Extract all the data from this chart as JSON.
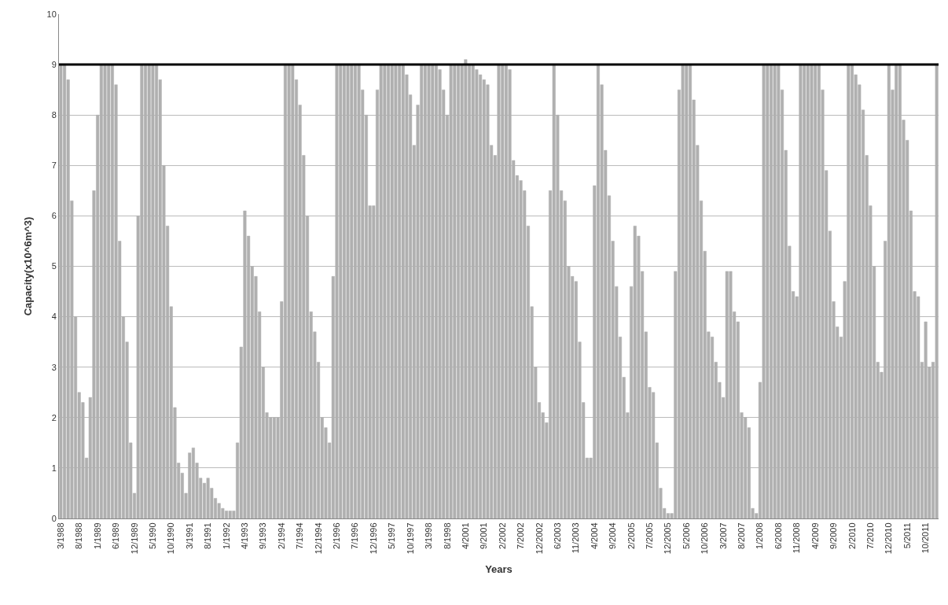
{
  "chart_data": {
    "type": "bar",
    "xlabel": "Years",
    "ylabel": "Capacity(x10^6m^3)",
    "categories": [
      "3/1988",
      null,
      null,
      null,
      null,
      "8/1988",
      null,
      null,
      null,
      null,
      "1/1989",
      null,
      null,
      null,
      null,
      "6/1989",
      null,
      null,
      null,
      null,
      "12/1989",
      null,
      null,
      null,
      null,
      "5/1990",
      null,
      null,
      null,
      null,
      "10/1990",
      null,
      null,
      null,
      null,
      "3/1991",
      null,
      null,
      null,
      null,
      "8/1991",
      null,
      null,
      null,
      null,
      "1/1992",
      null,
      null,
      null,
      null,
      "4/1993",
      null,
      null,
      null,
      null,
      "9/1993",
      null,
      null,
      null,
      null,
      "2/1994",
      null,
      null,
      null,
      null,
      "7/1994",
      null,
      null,
      null,
      null,
      "12/1994",
      null,
      null,
      null,
      null,
      "2/1996",
      null,
      null,
      null,
      null,
      "7/1996",
      null,
      null,
      null,
      null,
      "12/1996",
      null,
      null,
      null,
      null,
      "5/1997",
      null,
      null,
      null,
      null,
      "10/1997",
      null,
      null,
      null,
      null,
      "3/1998",
      null,
      null,
      null,
      null,
      "8/1998",
      null,
      null,
      null,
      null,
      "4/2001",
      null,
      null,
      null,
      null,
      "9/2001",
      null,
      null,
      null,
      null,
      "2/2002",
      null,
      null,
      null,
      null,
      "7/2002",
      null,
      null,
      null,
      null,
      "12/2002",
      null,
      null,
      null,
      null,
      "6/2003",
      null,
      null,
      null,
      null,
      "11/2003",
      null,
      null,
      null,
      null,
      "4/2004",
      null,
      null,
      null,
      null,
      "9/2004",
      null,
      null,
      null,
      null,
      "2/2005",
      null,
      null,
      null,
      null,
      "7/2005",
      null,
      null,
      null,
      null,
      "12/2005",
      null,
      null,
      null,
      null,
      "5/2006",
      null,
      null,
      null,
      null,
      "10/2006",
      null,
      null,
      null,
      null,
      "3/2007",
      null,
      null,
      null,
      null,
      "8/2007",
      null,
      null,
      null,
      null,
      "1/2008",
      null,
      null,
      null,
      null,
      "6/2008",
      null,
      null,
      null,
      null,
      "11/2008",
      null,
      null,
      null,
      null,
      "4/2009",
      null,
      null,
      null,
      null,
      "9/2009",
      null,
      null,
      null,
      null,
      "2/2010",
      null,
      null,
      null,
      null,
      "7/2010",
      null,
      null,
      null,
      null,
      "12/2010",
      null,
      null,
      null,
      null,
      "5/2011",
      null,
      null,
      null,
      null,
      "10/2011",
      null,
      null,
      null
    ],
    "values": [
      9,
      9,
      8.7,
      6.3,
      4,
      2.5,
      2.3,
      1.2,
      2.4,
      6.5,
      8,
      9,
      9,
      9,
      9,
      8.6,
      5.5,
      4,
      3.5,
      1.5,
      0.5,
      6,
      9,
      9,
      9,
      9,
      9,
      8.7,
      7,
      5.8,
      4.2,
      2.2,
      1.1,
      0.9,
      0.5,
      1.3,
      1.4,
      1.1,
      0.8,
      0.7,
      0.8,
      0.6,
      0.4,
      0.3,
      0.2,
      0.15,
      0.15,
      0.15,
      1.5,
      3.4,
      6.1,
      5.6,
      5,
      4.8,
      4.1,
      3,
      2.1,
      2,
      2,
      2,
      4.3,
      9,
      9,
      9,
      8.7,
      8.2,
      7.2,
      6,
      4.1,
      3.7,
      3.1,
      2,
      1.8,
      1.5,
      4.8,
      9,
      9,
      9,
      9,
      9,
      9,
      9,
      8.5,
      8,
      6.2,
      6.2,
      8.5,
      9,
      9,
      9,
      9,
      9,
      9,
      9,
      8.8,
      8.4,
      7.4,
      8.2,
      9,
      9,
      9,
      9,
      9,
      8.9,
      8.5,
      8,
      9,
      9,
      9,
      9,
      9.1,
      9,
      9,
      8.9,
      8.8,
      8.7,
      8.6,
      7.4,
      7.2,
      9,
      9,
      9,
      8.9,
      7.1,
      6.8,
      6.7,
      6.5,
      5.8,
      4.2,
      3,
      2.3,
      2.1,
      1.9,
      6.5,
      9,
      8,
      6.5,
      6.3,
      5,
      4.8,
      4.7,
      3.5,
      2.3,
      1.2,
      1.2,
      6.6,
      9,
      8.6,
      7.3,
      6.4,
      5.5,
      4.6,
      3.6,
      2.8,
      2.1,
      4.6,
      5.8,
      5.6,
      4.9,
      3.7,
      2.6,
      2.5,
      1.5,
      0.6,
      0.2,
      0.1,
      0.1,
      4.9,
      8.5,
      9,
      9,
      9,
      8.3,
      7.4,
      6.3,
      5.3,
      3.7,
      3.6,
      3.1,
      2.7,
      2.4,
      4.9,
      4.9,
      4.1,
      3.9,
      2.1,
      2,
      1.8,
      0.2,
      0.1,
      2.7,
      9,
      9,
      9,
      9,
      9,
      8.5,
      7.3,
      5.4,
      4.5,
      4.4,
      9,
      9,
      9,
      9,
      9,
      9,
      8.5,
      6.9,
      5.7,
      4.3,
      3.8,
      3.6,
      4.7,
      9,
      9,
      8.8,
      8.6,
      8.1,
      7.2,
      6.2,
      5,
      3.1,
      2.9,
      5.5,
      9,
      8.5,
      9,
      9,
      7.9,
      7.5,
      6.1,
      4.5,
      4.4,
      3.1,
      3.9,
      3,
      3.1,
      9
    ],
    "color": "#b0b0b0",
    "ylim": [
      0,
      10
    ],
    "yticks": [
      0,
      1,
      2,
      3,
      4,
      5,
      6,
      7,
      8,
      9,
      10
    ],
    "grid": "y",
    "ref_lines": [
      {
        "axis": "y",
        "value": 9,
        "color": "#000000"
      }
    ]
  }
}
